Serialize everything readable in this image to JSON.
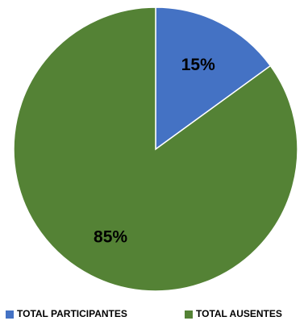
{
  "chart_data": {
    "type": "pie",
    "categories": [
      "TOTAL PARTICIPANTES",
      "TOTAL AUSENTES"
    ],
    "values": [
      15,
      85
    ],
    "labels": [
      "15%",
      "85%"
    ],
    "colors": [
      "#4472C4",
      "#548235"
    ],
    "title": "",
    "legend": "bottom"
  }
}
